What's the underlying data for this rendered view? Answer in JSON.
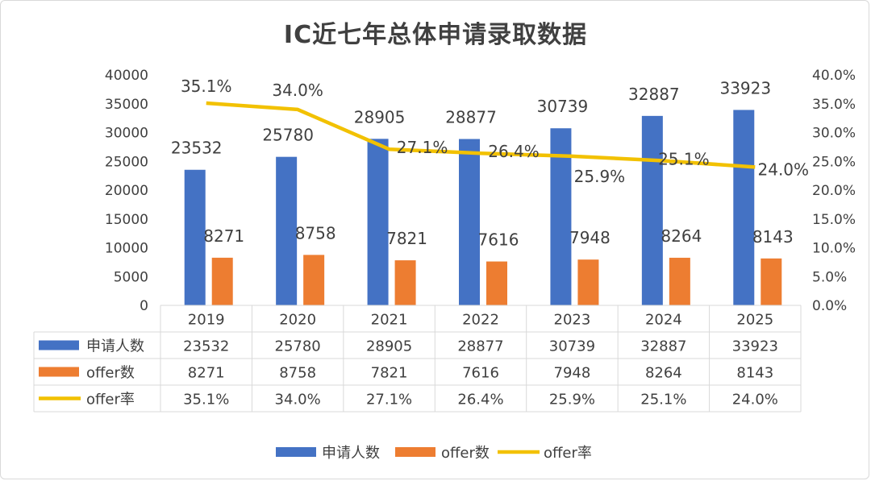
{
  "chart_data": {
    "type": "bar",
    "title": "IC近七年总体申请录取数据",
    "categories": [
      "2019",
      "2020",
      "2021",
      "2022",
      "2023",
      "2024",
      "2025"
    ],
    "series": [
      {
        "name": "申请人数",
        "type": "bar",
        "axis": "left",
        "values": [
          23532,
          25780,
          28905,
          28877,
          30739,
          32887,
          33923
        ]
      },
      {
        "name": "offer数",
        "type": "bar",
        "axis": "left",
        "values": [
          8271,
          8758,
          7821,
          7616,
          7948,
          8264,
          8143
        ]
      },
      {
        "name": "offer率",
        "type": "line",
        "axis": "right",
        "values": [
          35.1,
          34.0,
          27.1,
          26.4,
          25.9,
          25.1,
          24.0
        ]
      }
    ],
    "left_axis": {
      "ylim": [
        0,
        40000
      ],
      "ticks": [
        "0",
        "5000",
        "10000",
        "15000",
        "20000",
        "25000",
        "30000",
        "35000",
        "40000"
      ]
    },
    "right_axis": {
      "ylim": [
        0,
        40
      ],
      "ticks": [
        "0.0%",
        "5.0%",
        "10.0%",
        "15.0%",
        "20.0%",
        "25.0%",
        "30.0%",
        "35.0%",
        "40.0%"
      ]
    },
    "data_table": {
      "rows": [
        [
          "23532",
          "25780",
          "28905",
          "28877",
          "30739",
          "32887",
          "33923"
        ],
        [
          "8271",
          "8758",
          "7821",
          "7616",
          "7948",
          "8264",
          "8143"
        ],
        [
          "35.1%",
          "34.0%",
          "27.1%",
          "26.4%",
          "25.9%",
          "25.1%",
          "24.0%"
        ]
      ]
    },
    "rate_labels": [
      "35.1%",
      "34.0%",
      "27.1%",
      "26.4%",
      "25.9%",
      "25.1%",
      "24.0%"
    ],
    "legend_position": "bottom",
    "grid": false,
    "colors": {
      "applicants": "#4472c4",
      "offers": "#ed7d31",
      "rate": "#f2c100",
      "text": "#404040",
      "table_border": "#d9d9d9"
    }
  }
}
